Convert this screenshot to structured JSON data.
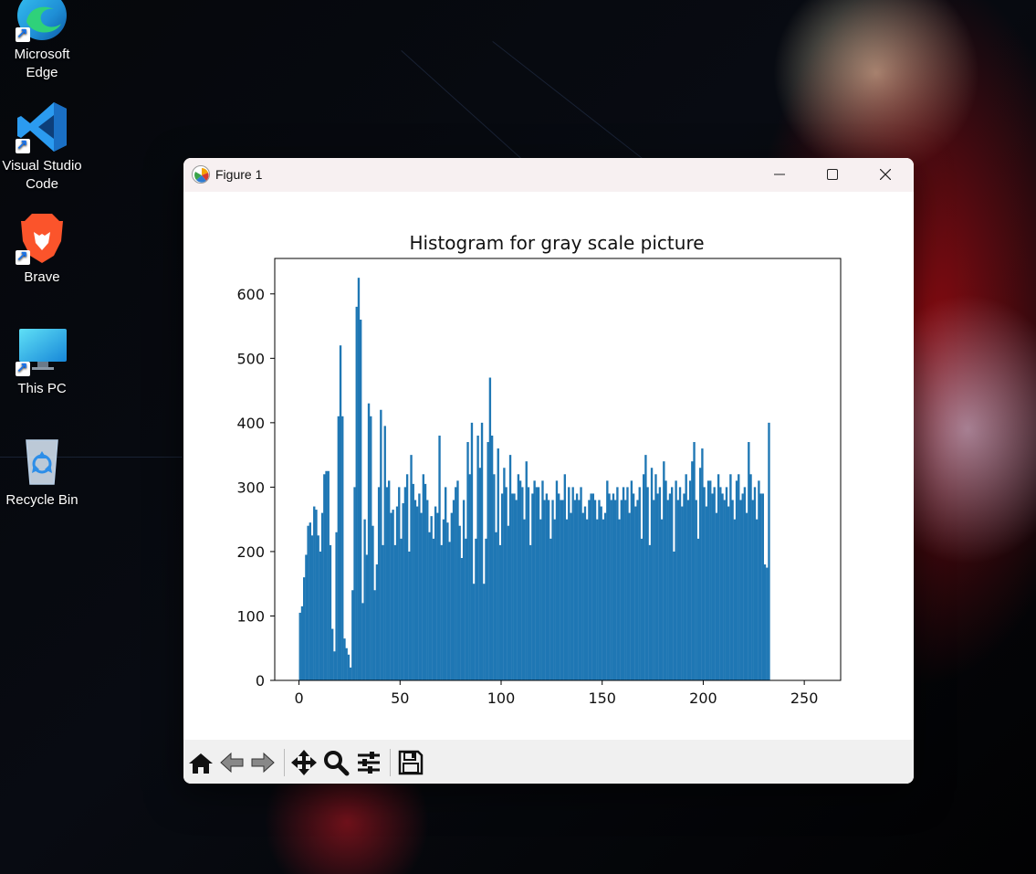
{
  "desktop": {
    "icons": [
      {
        "label_line1": "Microsoft",
        "label_line2": "Edge",
        "icon": "edge-icon"
      },
      {
        "label_line1": "Visual Studio",
        "label_line2": "Code",
        "icon": "vscode-icon"
      },
      {
        "label_line1": "Brave",
        "label_line2": "",
        "icon": "brave-icon"
      },
      {
        "label_line1": "This PC",
        "label_line2": "",
        "icon": "monitor-icon"
      },
      {
        "label_line1": "Recycle Bin",
        "label_line2": "",
        "icon": "recycle-bin-icon"
      }
    ]
  },
  "window": {
    "title": "Figure 1",
    "controls": [
      "minimize",
      "maximize",
      "close"
    ],
    "toolbar": [
      "home-icon",
      "back-arrow-icon",
      "forward-arrow-icon",
      "pan-icon",
      "zoom-icon",
      "configure-subplots-icon",
      "save-icon"
    ]
  },
  "chart_data": {
    "type": "bar",
    "title": "Histogram for gray scale picture",
    "xlabel": "",
    "ylabel": "",
    "xlim": [
      -12,
      268
    ],
    "ylim": [
      0,
      655
    ],
    "xticks": [
      0,
      50,
      100,
      150,
      200,
      250
    ],
    "yticks": [
      0,
      100,
      200,
      300,
      400,
      500,
      600
    ],
    "bar_color": "#1f77b4",
    "bin_start": 0,
    "bin_width": 1,
    "values": [
      105,
      115,
      160,
      195,
      240,
      245,
      225,
      270,
      265,
      225,
      200,
      260,
      320,
      325,
      325,
      210,
      80,
      45,
      230,
      410,
      520,
      410,
      65,
      50,
      40,
      20,
      140,
      300,
      580,
      625,
      560,
      120,
      250,
      195,
      430,
      410,
      240,
      140,
      180,
      300,
      420,
      210,
      395,
      300,
      310,
      260,
      265,
      210,
      270,
      300,
      220,
      275,
      300,
      320,
      200,
      350,
      305,
      280,
      270,
      290,
      260,
      320,
      305,
      280,
      230,
      255,
      220,
      270,
      260,
      380,
      210,
      250,
      300,
      245,
      215,
      260,
      280,
      300,
      310,
      240,
      190,
      280,
      220,
      370,
      320,
      400,
      150,
      220,
      380,
      330,
      400,
      150,
      220,
      370,
      470,
      380,
      320,
      230,
      360,
      210,
      290,
      330,
      300,
      240,
      350,
      290,
      290,
      280,
      320,
      310,
      300,
      250,
      340,
      300,
      210,
      290,
      310,
      300,
      300,
      250,
      310,
      280,
      290,
      280,
      220,
      280,
      250,
      310,
      290,
      280,
      280,
      320,
      250,
      300,
      260,
      300,
      280,
      290,
      280,
      300,
      260,
      270,
      250,
      280,
      290,
      290,
      280,
      250,
      280,
      270,
      250,
      260,
      310,
      290,
      280,
      290,
      280,
      300,
      250,
      280,
      300,
      280,
      300,
      260,
      310,
      290,
      270,
      280,
      300,
      220,
      320,
      350,
      300,
      210,
      330,
      280,
      320,
      290,
      300,
      250,
      340,
      310,
      280,
      290,
      300,
      200,
      310,
      280,
      300,
      270,
      290,
      320,
      280,
      310,
      340,
      370,
      280,
      220,
      330,
      360,
      300,
      270,
      310,
      310,
      290,
      300,
      260,
      320,
      300,
      290,
      280,
      300,
      270,
      320,
      280,
      250,
      310,
      320,
      280,
      290,
      300,
      260,
      370,
      320,
      280,
      300,
      250,
      310,
      290,
      290,
      180,
      175,
      400
    ]
  }
}
